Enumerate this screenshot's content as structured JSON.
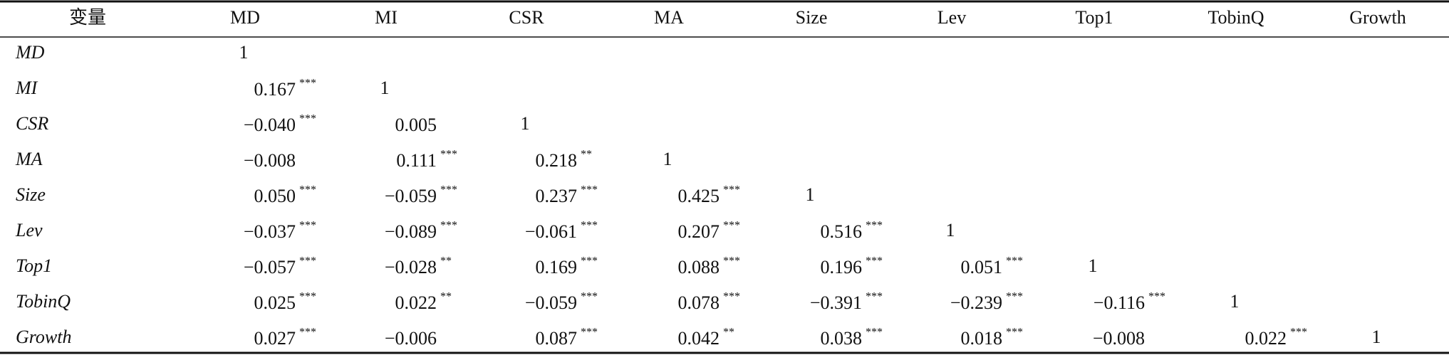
{
  "table": {
    "header": [
      "变量",
      "MD",
      "MI",
      "CSR",
      "MA",
      "Size",
      "Lev",
      "Top1",
      "TobinQ",
      "Growth"
    ],
    "rows": [
      {
        "label": "MD",
        "cells": [
          {
            "text": "1"
          }
        ]
      },
      {
        "label": "MI",
        "cells": [
          {
            "text": "0.167",
            "sig": "***"
          },
          {
            "text": "1"
          }
        ]
      },
      {
        "label": "CSR",
        "cells": [
          {
            "text": "−0.040",
            "sig": "***"
          },
          {
            "text": "0.005"
          },
          {
            "text": "1"
          }
        ]
      },
      {
        "label": "MA",
        "cells": [
          {
            "text": "−0.008"
          },
          {
            "text": "0.111",
            "sig": "***"
          },
          {
            "text": "0.218",
            "sig": "**"
          },
          {
            "text": "1"
          }
        ]
      },
      {
        "label": "Size",
        "cells": [
          {
            "text": "0.050",
            "sig": "***"
          },
          {
            "text": "−0.059",
            "sig": "***"
          },
          {
            "text": "0.237",
            "sig": "***"
          },
          {
            "text": "0.425",
            "sig": "***"
          },
          {
            "text": "1"
          }
        ]
      },
      {
        "label": "Lev",
        "cells": [
          {
            "text": "−0.037",
            "sig": "***"
          },
          {
            "text": "−0.089",
            "sig": "***"
          },
          {
            "text": "−0.061",
            "sig": "***"
          },
          {
            "text": "0.207",
            "sig": "***"
          },
          {
            "text": "0.516",
            "sig": "***"
          },
          {
            "text": "1"
          }
        ]
      },
      {
        "label": "Top1",
        "cells": [
          {
            "text": "−0.057",
            "sig": "***"
          },
          {
            "text": "−0.028",
            "sig": "**"
          },
          {
            "text": "0.169",
            "sig": "***"
          },
          {
            "text": "0.088",
            "sig": "***"
          },
          {
            "text": "0.196",
            "sig": "***"
          },
          {
            "text": "0.051",
            "sig": "***"
          },
          {
            "text": "1"
          }
        ]
      },
      {
        "label": "TobinQ",
        "cells": [
          {
            "text": "0.025",
            "sig": "***"
          },
          {
            "text": "0.022",
            "sig": "**"
          },
          {
            "text": "−0.059",
            "sig": "***"
          },
          {
            "text": "0.078",
            "sig": "***"
          },
          {
            "text": "−0.391",
            "sig": "***"
          },
          {
            "text": "−0.239",
            "sig": "***"
          },
          {
            "text": "−0.116",
            "sig": "***"
          },
          {
            "text": "1"
          }
        ]
      },
      {
        "label": "Growth",
        "cells": [
          {
            "text": "0.027",
            "sig": "***"
          },
          {
            "text": "−0.006"
          },
          {
            "text": "0.087",
            "sig": "***"
          },
          {
            "text": "0.042",
            "sig": "**"
          },
          {
            "text": "0.038",
            "sig": "***"
          },
          {
            "text": "0.018",
            "sig": "***"
          },
          {
            "text": "−0.008"
          },
          {
            "text": "0.022",
            "sig": "***"
          },
          {
            "text": "1"
          }
        ]
      }
    ]
  }
}
